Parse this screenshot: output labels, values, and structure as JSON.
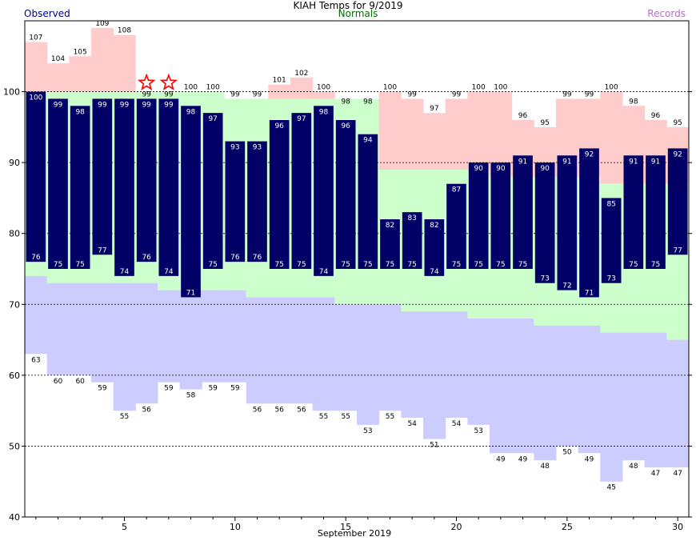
{
  "chart_data": {
    "type": "bar",
    "title": "KIAH Temps for 9/2019",
    "legend": [
      "Observed",
      "Normals",
      "Records"
    ],
    "xlabel": "September 2019",
    "ylabel": "",
    "xlim": [
      1,
      30
    ],
    "ylim": [
      40,
      110
    ],
    "y_ticks": [
      40,
      50,
      60,
      70,
      80,
      90,
      100
    ],
    "x_ticks": [
      5,
      10,
      15,
      20,
      25,
      30
    ],
    "grid": "dashed horizontal",
    "days": [
      1,
      2,
      3,
      4,
      5,
      6,
      7,
      8,
      9,
      10,
      11,
      12,
      13,
      14,
      15,
      16,
      17,
      18,
      19,
      20,
      21,
      22,
      23,
      24,
      25,
      26,
      27,
      28,
      29,
      30
    ],
    "series": [
      {
        "name": "Observed",
        "high": [
          100,
          99,
          98,
          99,
          99,
          99,
          99,
          98,
          97,
          93,
          93,
          96,
          97,
          98,
          96,
          94,
          82,
          83,
          82,
          87,
          90,
          90,
          91,
          90,
          91,
          92,
          85,
          91,
          91,
          92
        ],
        "low": [
          76,
          75,
          75,
          77,
          74,
          76,
          74,
          71,
          75,
          76,
          76,
          75,
          75,
          74,
          75,
          75,
          75,
          75,
          74,
          75,
          75,
          75,
          75,
          73,
          72,
          71,
          73,
          75,
          75,
          77
        ]
      },
      {
        "name": "Normals",
        "high": [
          100,
          100,
          100,
          100,
          100,
          100,
          100,
          100,
          100,
          99,
          99,
          99,
          99,
          99,
          99,
          99,
          89,
          89,
          89,
          89,
          89,
          88,
          88,
          88,
          88,
          88,
          87,
          87,
          87,
          87
        ],
        "low": [
          74,
          73,
          73,
          73,
          73,
          73,
          72,
          72,
          72,
          72,
          71,
          71,
          71,
          71,
          70,
          70,
          70,
          69,
          69,
          69,
          68,
          68,
          68,
          67,
          67,
          67,
          66,
          66,
          66,
          65
        ]
      },
      {
        "name": "Records",
        "high": [
          107,
          104,
          105,
          109,
          108,
          99,
          99,
          100,
          100,
          99,
          99,
          101,
          102,
          100,
          98,
          98,
          100,
          99,
          97,
          99,
          100,
          100,
          96,
          95,
          99,
          99,
          100,
          98,
          96,
          95
        ],
        "low": [
          63,
          60,
          60,
          59,
          55,
          56,
          59,
          58,
          59,
          59,
          56,
          56,
          56,
          55,
          55,
          53,
          55,
          54,
          51,
          54,
          53,
          49,
          49,
          48,
          50,
          49,
          45,
          48,
          47,
          47
        ]
      }
    ],
    "record_high_tied_days": [
      6,
      7
    ],
    "colors": {
      "observed": "#000066",
      "normal": "#ccffcc",
      "record_high": "#ffcccc",
      "record_low": "#ccccff",
      "star": "#ff0000",
      "observed_legend": "#000080",
      "normals_legend": "#007000",
      "records_legend": "#b070c0"
    }
  }
}
